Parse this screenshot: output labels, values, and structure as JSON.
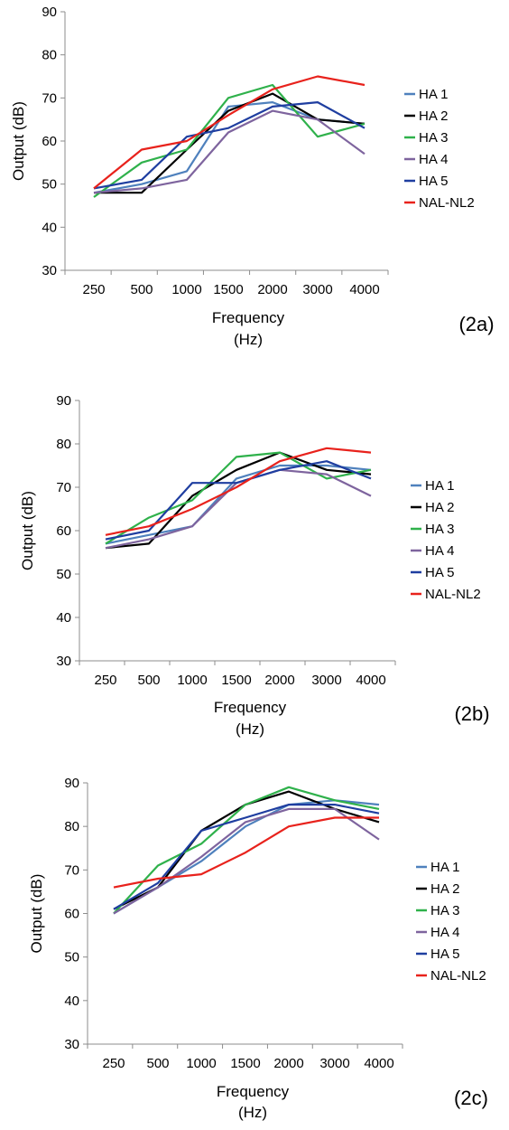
{
  "chart_data": [
    {
      "type": "line",
      "panel_label": "(2a)",
      "categories": [
        "250",
        "500",
        "1000",
        "1500",
        "2000",
        "3000",
        "4000"
      ],
      "xlabel": [
        "Frequency",
        "(Hz)"
      ],
      "ylabel": "Output (dB)",
      "ylim": [
        30,
        90
      ],
      "yticks": [
        30,
        40,
        50,
        60,
        70,
        80,
        90
      ],
      "grid": false,
      "legend_position": "right",
      "series": [
        {
          "name": "HA 1",
          "color": "#4f81bd",
          "values": [
            48,
            50,
            53,
            68,
            69,
            65,
            64
          ]
        },
        {
          "name": "HA 2",
          "color": "#000000",
          "values": [
            48,
            48,
            58,
            67,
            71,
            65,
            64
          ]
        },
        {
          "name": "HA 3",
          "color": "#2fb14b",
          "values": [
            47,
            55,
            58,
            70,
            73,
            61,
            64
          ]
        },
        {
          "name": "HA 4",
          "color": "#7e649e",
          "values": [
            48,
            49,
            51,
            62,
            67,
            65,
            57
          ]
        },
        {
          "name": "HA 5",
          "color": "#1f3ea0",
          "values": [
            49,
            51,
            61,
            63,
            68,
            69,
            63
          ]
        },
        {
          "name": "NAL-NL2",
          "color": "#e8221c",
          "values": [
            49,
            58,
            60,
            66,
            72,
            75,
            73
          ]
        }
      ]
    },
    {
      "type": "line",
      "panel_label": "(2b)",
      "categories": [
        "250",
        "500",
        "1000",
        "1500",
        "2000",
        "3000",
        "4000"
      ],
      "xlabel": [
        "Frequency",
        "(Hz)"
      ],
      "ylabel": "Output (dB)",
      "ylim": [
        30,
        90
      ],
      "yticks": [
        30,
        40,
        50,
        60,
        70,
        80,
        90
      ],
      "grid": false,
      "legend_position": "right",
      "series": [
        {
          "name": "HA 1",
          "color": "#4f81bd",
          "values": [
            57,
            59,
            61,
            72,
            75,
            75,
            74
          ]
        },
        {
          "name": "HA 2",
          "color": "#000000",
          "values": [
            56,
            57,
            68,
            74,
            78,
            74,
            73
          ]
        },
        {
          "name": "HA 3",
          "color": "#2fb14b",
          "values": [
            57,
            63,
            67,
            77,
            78,
            72,
            74
          ]
        },
        {
          "name": "HA 4",
          "color": "#7e649e",
          "values": [
            56,
            58,
            61,
            71,
            74,
            73,
            68
          ]
        },
        {
          "name": "HA 5",
          "color": "#1f3ea0",
          "values": [
            58,
            60,
            71,
            71,
            74,
            76,
            72
          ]
        },
        {
          "name": "NAL-NL2",
          "color": "#e8221c",
          "values": [
            59,
            61,
            65,
            70,
            76,
            79,
            78
          ]
        }
      ]
    },
    {
      "type": "line",
      "panel_label": "(2c)",
      "categories": [
        "250",
        "500",
        "1000",
        "1500",
        "2000",
        "3000",
        "4000"
      ],
      "xlabel": [
        "Frequency",
        "(Hz)"
      ],
      "ylabel": "Output (dB)",
      "ylim": [
        30,
        90
      ],
      "yticks": [
        30,
        40,
        50,
        60,
        70,
        80,
        90
      ],
      "grid": false,
      "legend_position": "right",
      "series": [
        {
          "name": "HA 1",
          "color": "#4f81bd",
          "values": [
            60,
            66,
            72,
            80,
            85,
            86,
            85
          ]
        },
        {
          "name": "HA 2",
          "color": "#000000",
          "values": [
            61,
            66,
            79,
            85,
            88,
            84,
            81
          ]
        },
        {
          "name": "HA 3",
          "color": "#2fb14b",
          "values": [
            60,
            71,
            76,
            85,
            89,
            86,
            84
          ]
        },
        {
          "name": "HA 4",
          "color": "#7e649e",
          "values": [
            60,
            66,
            73,
            81,
            84,
            84,
            77
          ]
        },
        {
          "name": "HA 5",
          "color": "#1f3ea0",
          "values": [
            61,
            67,
            79,
            82,
            85,
            85,
            83
          ]
        },
        {
          "name": "NAL-NL2",
          "color": "#e8221c",
          "values": [
            66,
            68,
            69,
            74,
            80,
            82,
            82
          ]
        }
      ]
    }
  ]
}
